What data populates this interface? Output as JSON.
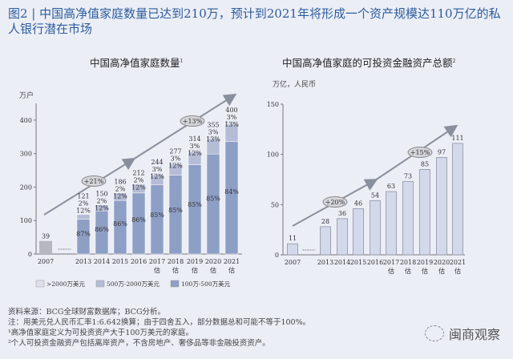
{
  "title": "图2 | 中国高净值家庭数量已达到210万，预计到2021年将形成一个资产规模达110万亿的私人银行潜在市场",
  "chart_data": [
    {
      "type": "bar",
      "stacked": true,
      "title": "中国高净值家庭数量",
      "title_note": "1",
      "ylabel": "万户",
      "ylim": [
        0,
        450
      ],
      "yticks": [
        0,
        100,
        200,
        300,
        400
      ],
      "categories": [
        "2007",
        "2013",
        "2014",
        "2015",
        "2016",
        "2017\n估",
        "2018\n估",
        "2019\n估",
        "2020\n估",
        "2021\n估"
      ],
      "totals": [
        39,
        121,
        150,
        186,
        212,
        244,
        277,
        314,
        355,
        400
      ],
      "series": [
        {
          "name": "100万-500万美元",
          "color": "#8e9fc6",
          "pct": [
            null,
            87,
            86,
            86,
            86,
            85,
            85,
            85,
            85,
            84
          ]
        },
        {
          "name": "500万-2000万美元",
          "color": "#b4bcd6",
          "pct": [
            null,
            12,
            12,
            12,
            12,
            12,
            12,
            12,
            13,
            13
          ]
        },
        {
          "name": ">2000万美元",
          "color": "#dde0ec",
          "pct": [
            null,
            2,
            2,
            2,
            2,
            3,
            3,
            3,
            3,
            3
          ]
        }
      ],
      "legend_order": [
        ">2000万美元",
        "500万-2000万美元",
        "100万-500万美元"
      ],
      "legend": "bottom",
      "annotations": [
        "+21%",
        "+13%"
      ]
    },
    {
      "type": "bar",
      "title": "中国高净值家庭的可投资金融资产总额",
      "title_note": "2",
      "ylabel": "万亿，人民币",
      "ylim": [
        0,
        150
      ],
      "yticks": [
        0,
        50,
        100,
        150
      ],
      "categories": [
        "2007",
        "2013",
        "2014",
        "2015",
        "2016",
        "2017\n估",
        "2018\n估",
        "2019\n估",
        "2020\n估",
        "2021\n估"
      ],
      "values": [
        11,
        28,
        36,
        46,
        54,
        63,
        73,
        85,
        97,
        111
      ],
      "color": "#d3d8ea",
      "annotations": [
        "+20%",
        "+15%"
      ]
    }
  ],
  "footnotes": [
    "资料来源：BCG全球财富数据库；BCG分析。",
    "注：用美元兑人民币汇率1:6.642换算；由于四舍五入，部分数据总和可能不等于100%。",
    "¹高净值家庭定义为可投资资产大于100万美元的家庭。",
    "²个人可投资金融资产包括离岸资产，不含房地产、奢侈品等非金融投资资产。"
  ],
  "watermark": "闽商观察"
}
